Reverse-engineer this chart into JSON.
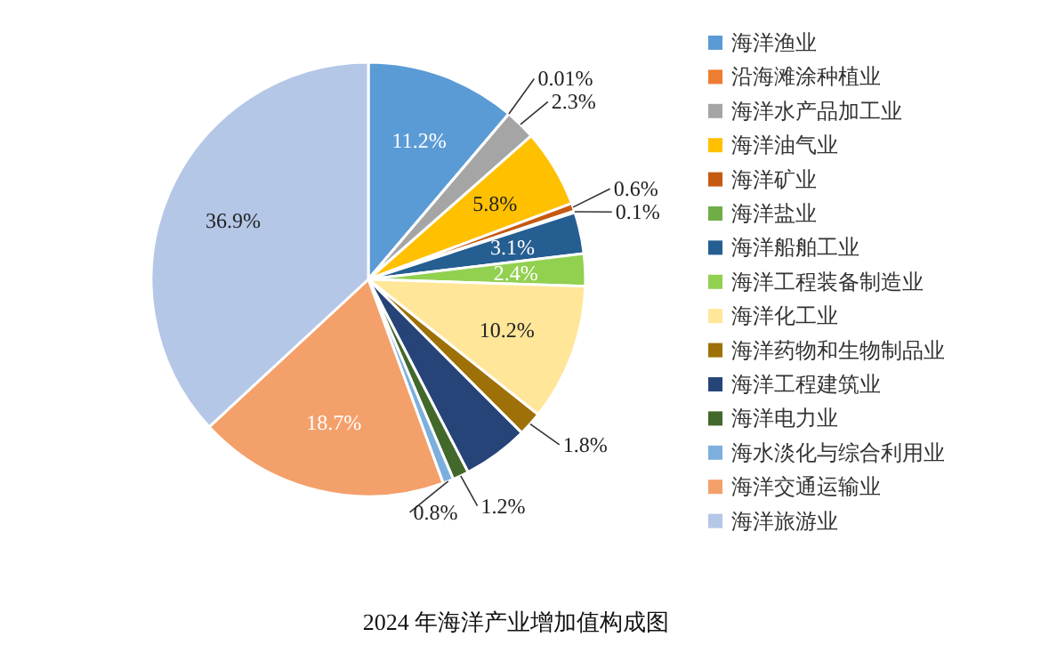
{
  "chart_data": {
    "type": "pie",
    "title": "2024 年海洋产业增加值构成图",
    "categories": [
      "海洋渔业",
      "沿海滩涂种植业",
      "海洋水产品加工业",
      "海洋油气业",
      "海洋矿业",
      "海洋盐业",
      "海洋船舶工业",
      "海洋工程装备制造业",
      "海洋化工业",
      "海洋药物和生物制品业",
      "海洋工程建筑业",
      "海洋电力业",
      "海水淡化与综合利用业",
      "海洋交通运输业",
      "海洋旅游业"
    ],
    "values": [
      11.2,
      0.01,
      2.3,
      5.8,
      0.6,
      0.1,
      3.1,
      2.4,
      10.2,
      1.8,
      4.9,
      1.2,
      0.8,
      18.7,
      36.9
    ],
    "value_labels": [
      "11.2%",
      "0.01%",
      "2.3%",
      "5.8%",
      "0.6%",
      "0.1%",
      "3.1%",
      "2.4%",
      "10.2%",
      "1.8%",
      null,
      "1.2%",
      "0.8%",
      "18.7%",
      "36.9%"
    ],
    "colors": [
      "#5b9bd5",
      "#ed7d31",
      "#a5a5a5",
      "#ffc000",
      "#c55a11",
      "#70ad47",
      "#255e91",
      "#92d050",
      "#ffe699",
      "#9e7108",
      "#264478",
      "#43682b",
      "#7cafdd",
      "#f4a06a",
      "#b4c7e7"
    ],
    "legend": "right"
  }
}
